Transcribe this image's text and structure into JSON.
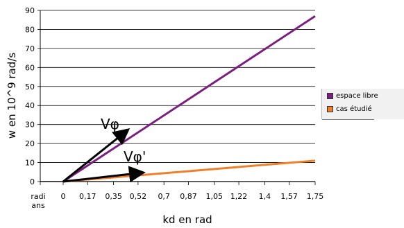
{
  "chart_data": {
    "type": "line",
    "title": "",
    "xlabel": "kd en rad",
    "ylabel": "w en 10^9 rad/s",
    "x_axis_prefix": "radi ans",
    "x_ticks": [
      "0",
      "0,17",
      "0,35",
      "0,52",
      "0,7",
      "0,87",
      "1,05",
      "1,22",
      "1,4",
      "1,57",
      "1,75"
    ],
    "x_values": [
      0,
      0.17,
      0.35,
      0.52,
      0.7,
      0.87,
      1.05,
      1.22,
      1.4,
      1.57,
      1.75
    ],
    "xlim": [
      0,
      1.75
    ],
    "ylim": [
      0,
      90
    ],
    "y_ticks": [
      0,
      10,
      20,
      30,
      40,
      50,
      60,
      70,
      80,
      90
    ],
    "grid": "horizontal",
    "legend_position": "right",
    "series": [
      {
        "name": "espace libre",
        "color": "#7b1f7e",
        "x": [
          0,
          1.75
        ],
        "y": [
          0,
          87
        ]
      },
      {
        "name": "cas étudié",
        "color": "#f07f2b",
        "x": [
          0,
          1.75
        ],
        "y": [
          0,
          11
        ]
      }
    ],
    "annotations": [
      {
        "text": "Vφ",
        "from": [
          0,
          0
        ],
        "to": [
          0.43,
          26
        ]
      },
      {
        "text": "Vφ'",
        "from": [
          0,
          0
        ],
        "to": [
          0.53,
          4.5
        ]
      }
    ]
  }
}
